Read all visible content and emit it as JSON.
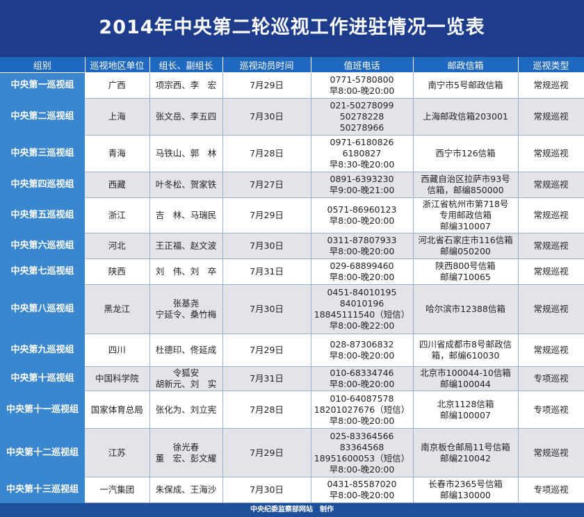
{
  "title": "2014年中央第二轮巡视工作进驻情况一览表",
  "headers": [
    "组别",
    "巡视地区单位",
    "组长、副组长",
    "巡视动员时间",
    "值班电话",
    "邮政信箱",
    "巡视类型"
  ],
  "rows": [
    [
      "中央第一巡视组",
      "广西",
      "项宗西、李　宏",
      "7月29日",
      "0771-5780800\n早8:00-晚20:00",
      "南宁市5号邮政信箱",
      "常规巡视"
    ],
    [
      "中央第二巡视组",
      "上海",
      "张文岳、李五四",
      "7月30日",
      "021-50278099\n50278228\n50278966",
      "上海邮政信箱203001",
      "常规巡视"
    ],
    [
      "中央第三巡视组",
      "青海",
      "马铁山、郭　林",
      "7月28日",
      "0971-6180826\n6180827\n早8:30-晚20:00",
      "西宁市126信箱",
      "常规巡视"
    ],
    [
      "中央第四巡视组",
      "西藏",
      "叶冬松、贺家铁",
      "7月27日",
      "0891-6393230\n早9:00-晚21:00",
      "西藏自治区拉萨市93号\n信箱，邮编850000",
      "常规巡视"
    ],
    [
      "中央第五巡视组",
      "浙江",
      "吉　林、马瑞民",
      "7月29日",
      "0571-86960123\n早8:00-晚20:00",
      "浙江省杭州市第718号\n专用邮政信箱\n邮编310007",
      "常规巡视"
    ],
    [
      "中央第六巡视组",
      "河北",
      "王正福、赵文波",
      "7月30日",
      "0311-87807933\n早8:00-晚20:00",
      "河北省石家庄市116信箱\n邮编050200",
      "常规巡视"
    ],
    [
      "中央第七巡视组",
      "陕西",
      "刘　伟、刘　卒",
      "7月31日",
      "029-68899460\n早8:00-晚20:00",
      "陕西800号信箱\n邮编710065",
      "常规巡视"
    ],
    [
      "中央第八巡视组",
      "黑龙江",
      "张基尧\n宁延令、桑竹梅",
      "7月30日",
      "0451-84010195\n84010196\n18845111540（短信）\n早8:00-晚22:00",
      "哈尔滨市12388信箱",
      "常规巡视"
    ],
    [
      "中央第九巡视组",
      "四川",
      "杜德印、佟延成",
      "7月29日",
      "028-87306832\n早8:00-晚20:00",
      "四川省成都市8号邮政信\n箱，邮编610030",
      "常规巡视"
    ],
    [
      "中央第十巡视组",
      "中国科学院",
      "令狐安\n胡新元、刘　实",
      "7月31日",
      "010-68334746\n早8:00-晚20:00",
      "北京市100044-10信箱\n邮编100044",
      "专项巡视"
    ],
    [
      "中央第十一巡视组",
      "国家体育总局",
      "张化为、刘立宪",
      "7月28日",
      "010-64087578\n18201027676（短信）\n早8:00-晚20:00",
      "北京1128信箱\n邮编100007",
      "专项巡视"
    ],
    [
      "中央第十二巡视组",
      "江苏",
      "徐光春\n董　宏、彭文耀",
      "7月29日",
      "025-83364566\n83364568\n18951600053（短信）\n早8:00-晚20:00",
      "南京板仓邮局11号信箱\n邮编210042",
      "常规巡视"
    ],
    [
      "中央第十三巡视组",
      "一汽集团",
      "朱保成、王海沙",
      "7月30日",
      "0431-85587020\n早8:00-晚20:00",
      "长春市2365号信箱\n邮编130000",
      "专项巡视"
    ]
  ],
  "footer": "中央纪委监察部网站　制作"
}
